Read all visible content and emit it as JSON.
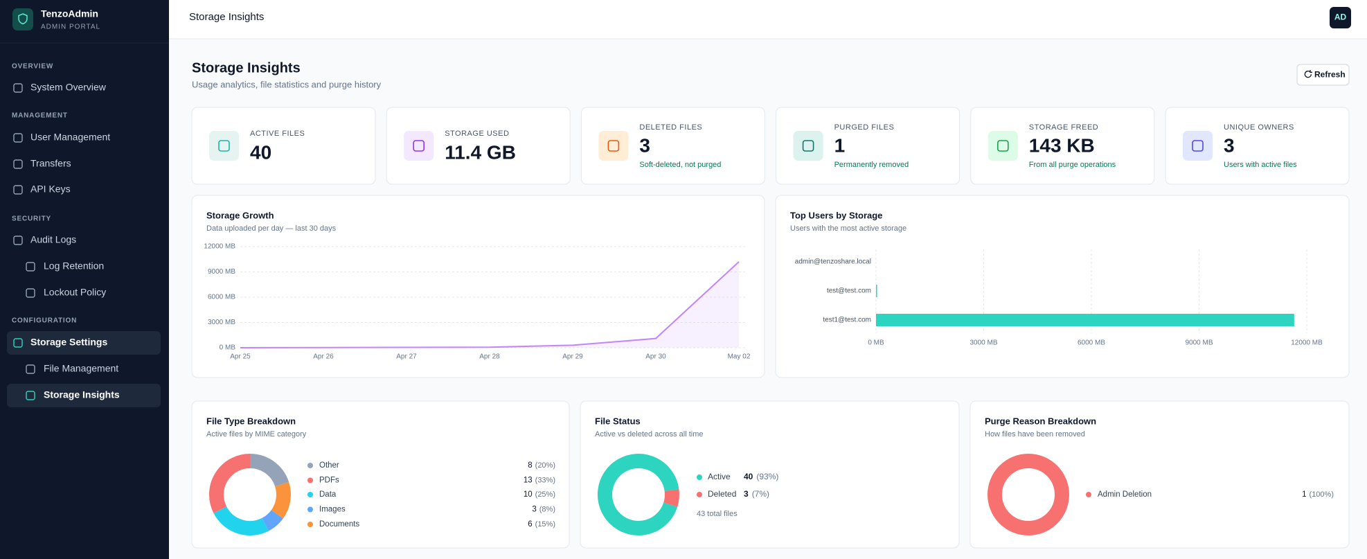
{
  "sidebar": {
    "brand": "TenzoAdmin",
    "subtitle": "ADMIN PORTAL",
    "sections": [
      {
        "title": "OVERVIEW",
        "items": [
          "System Overview"
        ]
      },
      {
        "title": "MANAGEMENT",
        "items": [
          "User Management",
          "Transfers",
          "API Keys"
        ]
      },
      {
        "title": "SECURITY",
        "items": [
          "Audit Logs",
          "Log Retention",
          "Lockout Policy"
        ]
      },
      {
        "title": "CONFIGURATION",
        "items": [
          "Storage Settings",
          "File Management",
          "Storage Insights"
        ]
      }
    ]
  },
  "header": {
    "title": "Storage Insights",
    "avatar": "AD"
  },
  "page": {
    "title": "Storage Insights",
    "subtitle": "Usage analytics, file statistics and purge history",
    "refresh": "Refresh"
  },
  "stats": [
    {
      "label": "ACTIVE FILES",
      "value": 40
    },
    {
      "label": "STORAGE USED",
      "value": "11.4 GB"
    },
    {
      "label": "DELETED FILES",
      "value": 3,
      "note": "Soft-deleted, not purged"
    },
    {
      "label": "PURGED FILES",
      "value": 1,
      "note": "Permanently removed"
    },
    {
      "label": "STORAGE FREED",
      "value": "143 KB",
      "note": "From all purge operations"
    },
    {
      "label": "UNIQUE OWNERS",
      "value": 3,
      "note": "Users with active files"
    }
  ],
  "chart_data": [
    {
      "type": "line",
      "title": "Storage Growth",
      "subtitle": "Data uploaded per day — last 30 days",
      "categories": [
        "Apr 25",
        "Apr 26",
        "Apr 27",
        "Apr 28",
        "Apr 29",
        "Apr 30",
        "May 02"
      ],
      "values": [
        0,
        20,
        40,
        60,
        300,
        1100,
        10200
      ],
      "color": "#c084fc",
      "ylim": [
        0,
        12000
      ],
      "yticks": [
        {
          "value": 0,
          "label": "0 MB"
        },
        {
          "value": 3000,
          "label": "3000 MB"
        },
        {
          "value": 6000,
          "label": "6000 MB"
        },
        {
          "value": 9000,
          "label": "9000 MB"
        },
        {
          "value": 12000,
          "label": "12000 MB"
        }
      ],
      "grid": true
    },
    {
      "type": "hbar",
      "title": "Top Users by Storage",
      "subtitle": "Users with the most active storage",
      "categories": [
        "admin@tenzoshare.local",
        "test@test.com",
        "test1@test.com"
      ],
      "values": [
        0,
        30,
        11650
      ],
      "color": "#2dd4bf",
      "xlim": [
        0,
        12000
      ],
      "xticks": [
        {
          "value": 0,
          "label": "0 MB"
        },
        {
          "value": 3000,
          "label": "3000 MB"
        },
        {
          "value": 6000,
          "label": "6000 MB"
        },
        {
          "value": 9000,
          "label": "9000 MB"
        },
        {
          "value": 12000,
          "label": "12000 MB"
        }
      ],
      "grid": true
    },
    {
      "type": "donut",
      "title": "File Type Breakdown",
      "subtitle": "Active files by MIME category",
      "categories": [
        "Other",
        "PDFs",
        "Data",
        "Images",
        "Documents"
      ],
      "values": [
        8,
        13,
        10,
        3,
        6
      ],
      "percent_labels": [
        "(20%)",
        "(33%)",
        "(25%)",
        "(8%)",
        "(15%)"
      ],
      "colors": [
        "#94a3b8",
        "#f87171",
        "#22d3ee",
        "#60a5fa",
        "#fb923c"
      ]
    },
    {
      "type": "donut",
      "title": "File Status",
      "subtitle": "Active vs deleted across all time",
      "categories": [
        "Active",
        "Deleted"
      ],
      "values": [
        40,
        3
      ],
      "percent_labels": [
        "(93%)",
        "(7%)"
      ],
      "colors": [
        "#2dd4bf",
        "#f87171"
      ],
      "footnote": "43 total files"
    },
    {
      "type": "donut",
      "title": "Purge Reason Breakdown",
      "subtitle": "How files have been removed",
      "categories": [
        "Admin Deletion"
      ],
      "values": [
        1
      ],
      "percent_labels": [
        "(100%)"
      ],
      "colors": [
        "#f87171"
      ]
    }
  ]
}
